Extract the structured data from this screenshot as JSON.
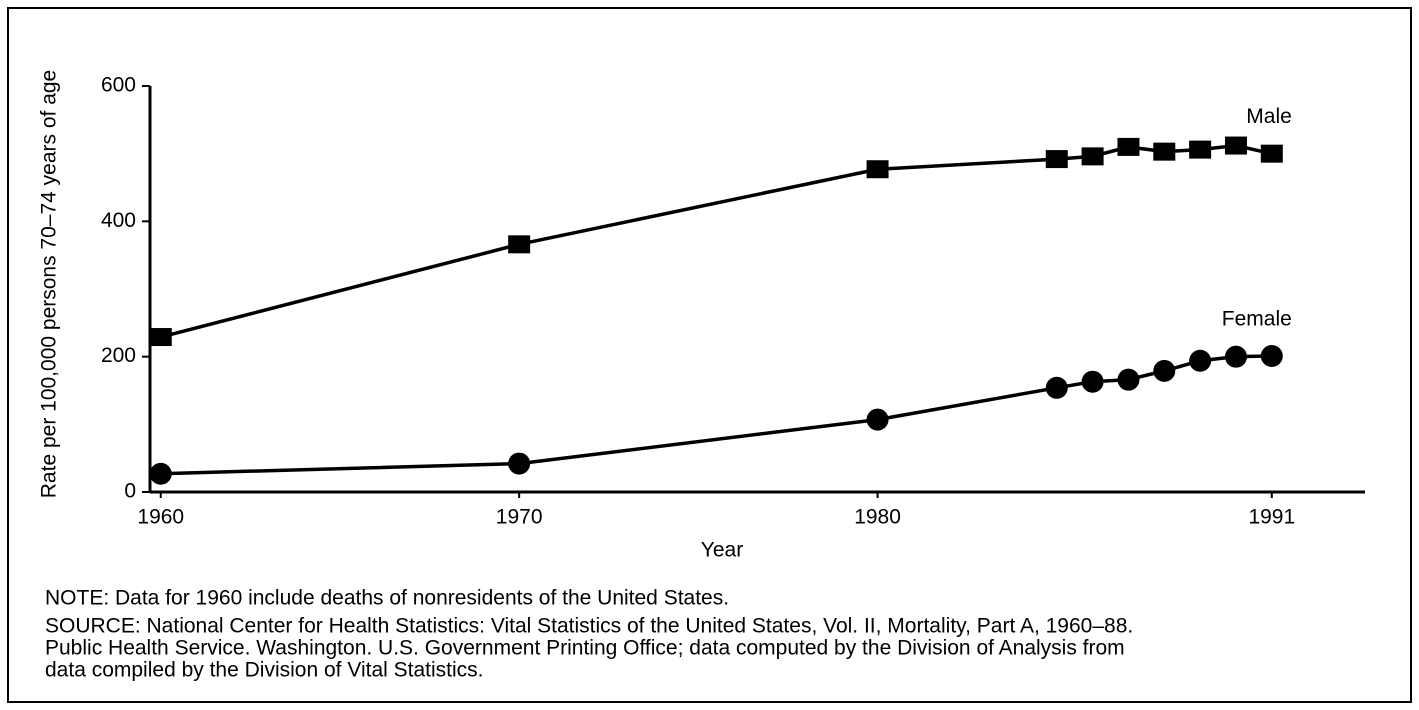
{
  "chart_data": {
    "type": "line",
    "ylabel": "Rate per 100,000 persons 70–74 years of age",
    "xlabel": "Year",
    "x": [
      1960,
      1970,
      1980,
      1985,
      1986,
      1987,
      1988,
      1989,
      1990,
      1991
    ],
    "series": [
      {
        "name": "Male",
        "color": "#000000",
        "marker": "square",
        "values": [
          229,
          366,
          477,
          492,
          496,
          510,
          503,
          506,
          512,
          500
        ]
      },
      {
        "name": "Female",
        "color": "#000000",
        "marker": "circle",
        "values": [
          27,
          42,
          107,
          154,
          163,
          166,
          179,
          194,
          200,
          201
        ]
      }
    ],
    "xlim": [
      1959.7,
      1993.6
    ],
    "xticks": [
      1960,
      1970,
      1980,
      1991
    ],
    "ylim": [
      0,
      600
    ],
    "yticks": [
      0,
      200,
      400,
      600
    ],
    "note": "NOTE: Data for 1960 include deaths of nonresidents of the United States.",
    "source": [
      "SOURCE: National Center for Health Statistics: Vital Statistics of the United States, Vol. II, Mortality, Part A, 1960–88.",
      "Public Health Service. Washington. U.S. Government Printing Office; data computed by the Division of Analysis from",
      "data compiled by the Division of Vital Statistics."
    ]
  }
}
